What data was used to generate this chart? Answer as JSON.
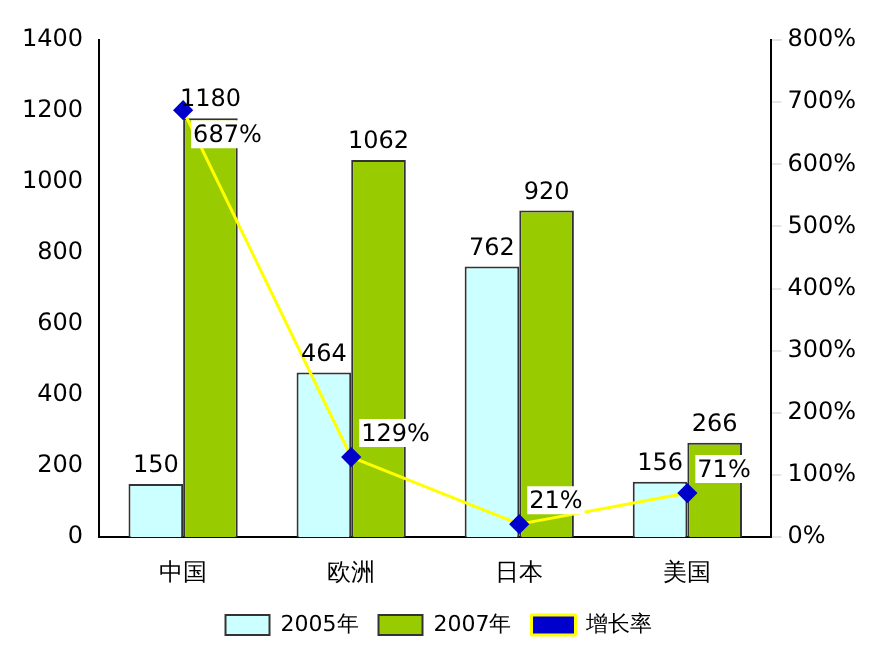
{
  "chart_data": {
    "type": "bar",
    "categories": [
      "中国",
      "欧洲",
      "日本",
      "美国"
    ],
    "series": [
      {
        "name": "2005年",
        "color": "#ccffff",
        "values": [
          150,
          464,
          762,
          156
        ],
        "value_labels": [
          "150",
          "464",
          "762",
          "156"
        ]
      },
      {
        "name": "2007年",
        "color": "#99cc00",
        "values": [
          1180,
          1062,
          920,
          266
        ],
        "value_labels": [
          "1180",
          "1062",
          "920",
          "266"
        ]
      },
      {
        "name": "增长率",
        "type": "line",
        "axis": "y2",
        "color": "#ffff00",
        "values": [
          687,
          129,
          21,
          71
        ],
        "value_labels": [
          "687%",
          "129%",
          "21%",
          "71%"
        ]
      }
    ],
    "ylim": [
      0,
      1400
    ],
    "yticks": [
      0,
      200,
      400,
      600,
      800,
      1000,
      1200,
      1400
    ],
    "y2lim": [
      0,
      800
    ],
    "y2ticks": [
      {
        "value": 0,
        "label": "0%"
      },
      {
        "value": 100,
        "label": "100%"
      },
      {
        "value": 200,
        "label": "200%"
      },
      {
        "value": 300,
        "label": "300%"
      },
      {
        "value": 400,
        "label": "400%"
      },
      {
        "value": 500,
        "label": "500%"
      },
      {
        "value": 600,
        "label": "600%"
      },
      {
        "value": 700,
        "label": "700%"
      },
      {
        "value": 800,
        "label": "800%"
      }
    ],
    "grid": false,
    "legend": "bottom",
    "marker": "diamond",
    "line_style": "solid"
  }
}
